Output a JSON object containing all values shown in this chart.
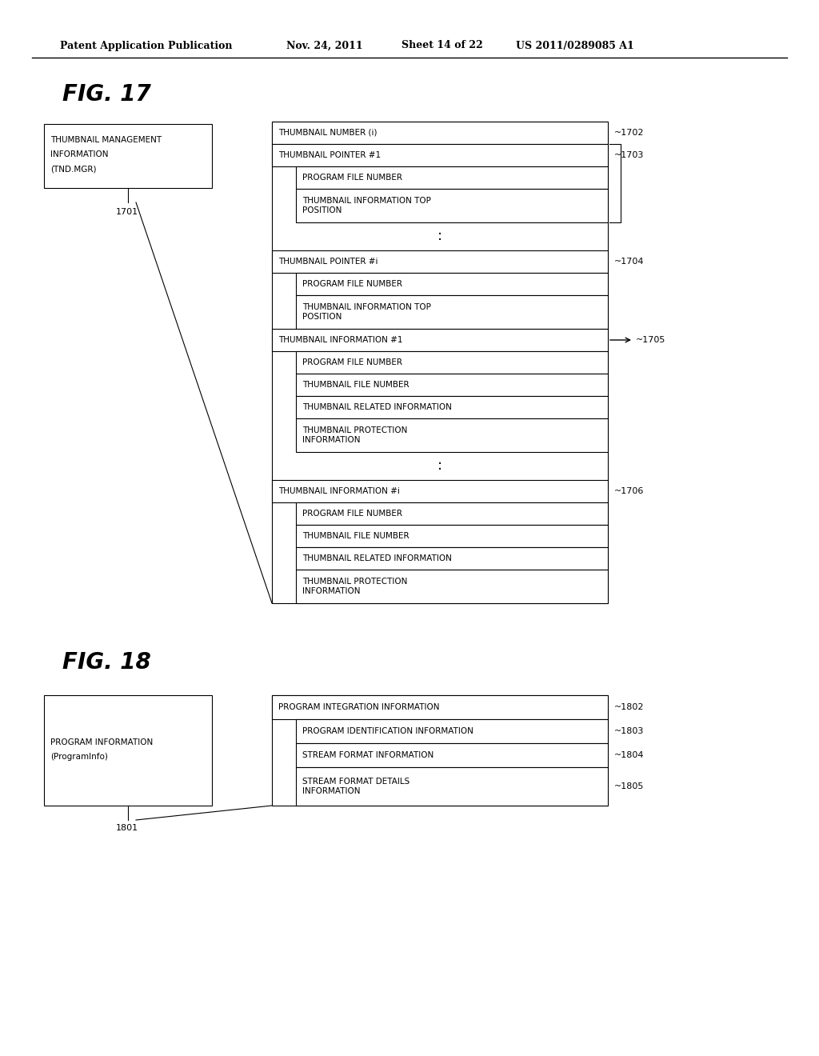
{
  "bg_color": "#ffffff",
  "header_text": "Patent Application Publication",
  "header_date": "Nov. 24, 2011",
  "header_sheet": "Sheet 14 of 22",
  "header_patent": "US 2011/0289085 A1",
  "fig17_title": "FIG. 17",
  "fig18_title": "FIG. 18"
}
